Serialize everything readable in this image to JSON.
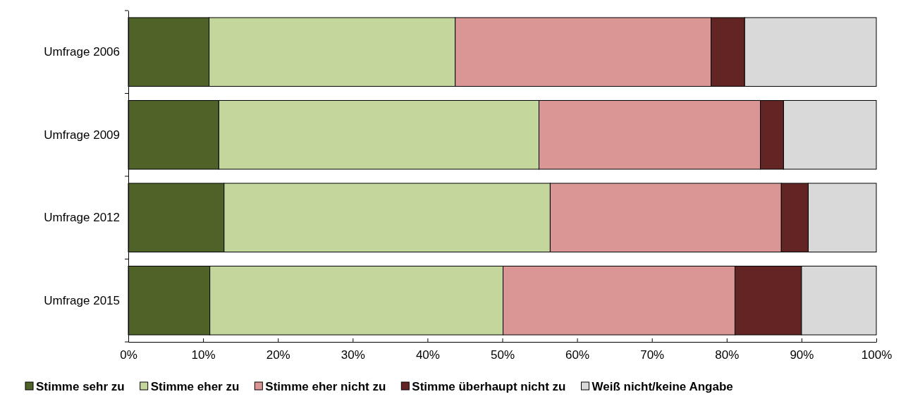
{
  "chart_data": {
    "type": "bar",
    "orientation": "horizontal",
    "stacked": true,
    "categories": [
      "Umfrage 2006",
      "Umfrage 2009",
      "Umfrage 2012",
      "Umfrage 2015"
    ],
    "series": [
      {
        "name": "Stimme sehr zu",
        "color": "#4f6228",
        "values": [
          10.8,
          12.1,
          12.8,
          10.9
        ]
      },
      {
        "name": "Stimme eher zu",
        "color": "#c3d69b",
        "values": [
          32.9,
          42.8,
          43.6,
          39.2
        ]
      },
      {
        "name": "Stimme eher nicht zu",
        "color": "#d99694",
        "values": [
          34.2,
          29.6,
          30.9,
          31.0
        ]
      },
      {
        "name": "Stimme überhaupt nicht zu",
        "color": "#632523",
        "values": [
          4.5,
          3.1,
          3.6,
          8.9
        ]
      },
      {
        "name": "Weiß nicht/keine Angabe",
        "color": "#d9d9d9",
        "values": [
          17.6,
          12.4,
          9.1,
          10.0
        ]
      }
    ],
    "xlim": [
      0,
      100
    ],
    "xticks": [
      {
        "value": 0,
        "label": "0%"
      },
      {
        "value": 10,
        "label": "10%"
      },
      {
        "value": 20,
        "label": "20%"
      },
      {
        "value": 30,
        "label": "30%"
      },
      {
        "value": 40,
        "label": "40%"
      },
      {
        "value": 50,
        "label": "50%"
      },
      {
        "value": 60,
        "label": "60%"
      },
      {
        "value": 70,
        "label": "70%"
      },
      {
        "value": 80,
        "label": "80%"
      },
      {
        "value": 90,
        "label": "90%"
      },
      {
        "value": 100,
        "label": "100%"
      }
    ],
    "grid": false,
    "legend": "bottom"
  }
}
